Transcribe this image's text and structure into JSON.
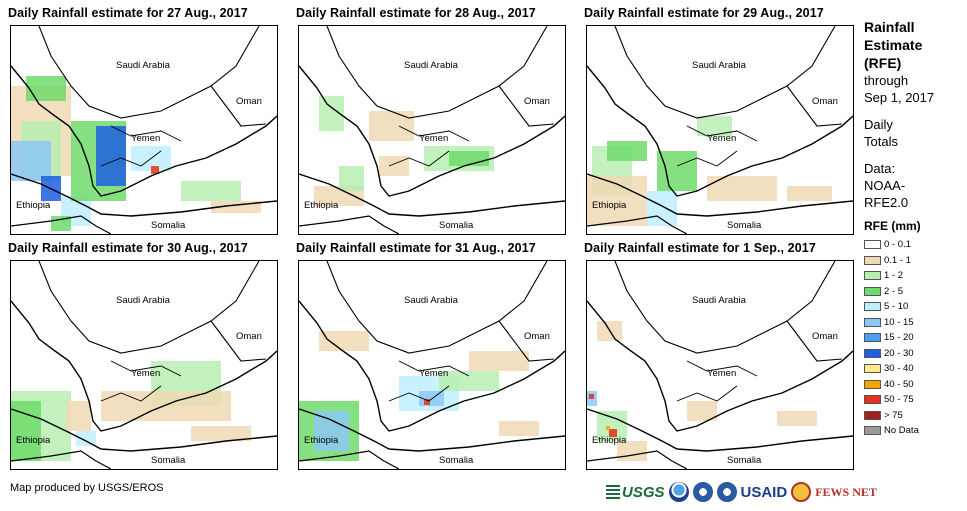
{
  "panels": [
    {
      "title": "Daily Rainfall estimate for 27 Aug., 2017"
    },
    {
      "title": "Daily Rainfall estimate for 28 Aug., 2017"
    },
    {
      "title": "Daily Rainfall estimate for 29 Aug., 2017"
    },
    {
      "title": "Daily Rainfall estimate for 30 Aug., 2017"
    },
    {
      "title": "Daily Rainfall estimate for 31 Aug., 2017"
    },
    {
      "title": "Daily Rainfall estimate for 1 Sep., 2017"
    }
  ],
  "map_labels": {
    "saudi": "Saudi Arabia",
    "oman": "Oman",
    "yemen": "Yemen",
    "ethiopia": "Ethiopia",
    "somalia": "Somalia"
  },
  "legend": {
    "title_lines": [
      "Rainfall",
      "Estimate",
      "(RFE)"
    ],
    "through": "through",
    "date": "Sep 1, 2017",
    "daily": "Daily",
    "totals": "Totals",
    "data_label": "Data:",
    "source1": "NOAA-",
    "source2": "RFE2.0",
    "rfe_heading": "RFE (mm)",
    "items": [
      {
        "label": "0 - 0.1",
        "color": "#ffffff"
      },
      {
        "label": "0.1 - 1",
        "color": "#f0d9b5"
      },
      {
        "label": "1 - 2",
        "color": "#b7efb2"
      },
      {
        "label": "2 - 5",
        "color": "#6fda6a"
      },
      {
        "label": "5 - 10",
        "color": "#bfefff"
      },
      {
        "label": "10 - 15",
        "color": "#8cc8f5"
      },
      {
        "label": "15 - 20",
        "color": "#4a9ff0"
      },
      {
        "label": "20 - 30",
        "color": "#1c5fe0"
      },
      {
        "label": "30 - 40",
        "color": "#ffe98a"
      },
      {
        "label": "40 - 50",
        "color": "#f5a300"
      },
      {
        "label": "50 - 75",
        "color": "#e8301a"
      },
      {
        "label": "> 75",
        "color": "#a3201f"
      },
      {
        "label": "No Data",
        "color": "#9a9a9a"
      }
    ]
  },
  "footer": {
    "credit": "Map produced by USGS/EROS"
  },
  "logos": {
    "usgs": "USGS",
    "usaid": "USAID",
    "fews": "FEWS NET"
  }
}
